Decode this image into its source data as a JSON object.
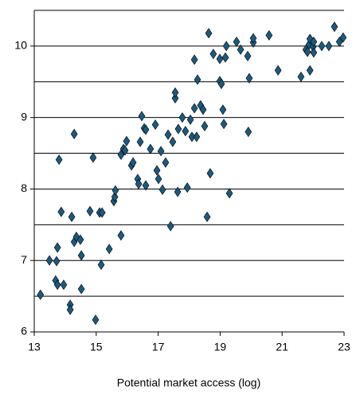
{
  "chart_data": {
    "type": "scatter",
    "x_label": "Potential market access (log)",
    "x": [
      13.2,
      13.49,
      13.72,
      13.75,
      13.69,
      13.75,
      13.95,
      13.8,
      13.87,
      14.16,
      14.16,
      14.21,
      14.29,
      14.29,
      14.36,
      14.49,
      14.52,
      14.52,
      14.8,
      14.9,
      14.98,
      15.11,
      15.19,
      15.16,
      15.42,
      15.57,
      15.6,
      15.62,
      15.8,
      15.8,
      15.88,
      15.93,
      15.98,
      16.14,
      16.19,
      16.34,
      16.37,
      16.42,
      16.47,
      16.55,
      16.6,
      16.6,
      16.75,
      16.91,
      16.96,
      17.01,
      17.09,
      17.14,
      17.24,
      17.32,
      17.4,
      17.47,
      17.55,
      17.55,
      17.63,
      17.65,
      17.78,
      17.88,
      17.94,
      18.04,
      18.09,
      18.17,
      18.17,
      18.24,
      18.27,
      18.37,
      18.45,
      18.5,
      18.58,
      18.63,
      18.68,
      18.78,
      18.99,
      18.99,
      19.04,
      19.09,
      19.12,
      19.17,
      19.2,
      19.3,
      19.53,
      19.66,
      19.89,
      19.91,
      19.94,
      20.07,
      20.07,
      20.58,
      20.87,
      21.61,
      21.77,
      21.82,
      21.87,
      21.9,
      21.9,
      22.0,
      22.02,
      22.02,
      22.28,
      22.51,
      22.69,
      22.85,
      22.97
    ],
    "values": [
      6.52,
      7.0,
      6.99,
      7.18,
      6.72,
      6.66,
      6.66,
      8.41,
      7.68,
      6.38,
      6.31,
      7.61,
      8.77,
      7.26,
      7.33,
      7.29,
      7.07,
      6.6,
      7.69,
      8.44,
      6.17,
      7.67,
      7.67,
      6.94,
      7.16,
      7.83,
      7.89,
      7.98,
      7.35,
      8.48,
      8.56,
      8.54,
      8.67,
      8.33,
      8.37,
      8.14,
      8.07,
      8.66,
      9.02,
      8.85,
      8.83,
      8.05,
      8.56,
      8.9,
      8.26,
      8.14,
      8.53,
      7.99,
      8.37,
      8.76,
      7.48,
      8.66,
      9.27,
      9.35,
      7.96,
      8.84,
      9.0,
      8.81,
      8.02,
      8.97,
      8.73,
      9.13,
      9.81,
      8.73,
      9.53,
      9.17,
      9.11,
      8.88,
      7.61,
      10.18,
      8.22,
      9.89,
      9.51,
      9.82,
      9.47,
      9.11,
      8.91,
      9.84,
      10.0,
      7.94,
      10.06,
      9.95,
      9.86,
      8.8,
      9.55,
      10.05,
      10.11,
      10.15,
      9.66,
      9.57,
      9.95,
      9.92,
      10.02,
      10.1,
      9.66,
      9.99,
      9.91,
      10.06,
      10.0,
      10.0,
      10.27,
      10.06,
      10.12
    ],
    "color": "#1b5a7e",
    "xlim": [
      13,
      23
    ],
    "xticks": [
      13,
      15,
      17,
      19,
      21,
      23
    ],
    "ylim": [
      6,
      10.5
    ],
    "yticks": [
      6,
      7,
      8,
      9,
      10
    ],
    "ygrid": [
      6.5,
      7,
      7.5,
      8,
      8.5,
      9,
      9.5,
      10,
      10.5
    ]
  }
}
